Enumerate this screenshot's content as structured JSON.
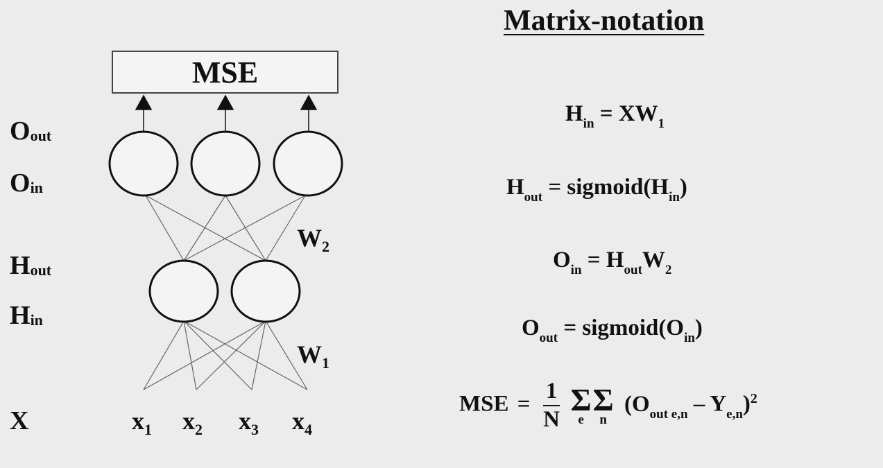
{
  "title": "Matrix-notation",
  "box": {
    "label": "MSE"
  },
  "layers": {
    "o_out": {
      "base": "O",
      "sub": "out"
    },
    "o_in": {
      "base": "O",
      "sub": "in"
    },
    "h_out": {
      "base": "H",
      "sub": "out"
    },
    "h_in": {
      "base": "H",
      "sub": "in"
    },
    "x": {
      "base": "X"
    }
  },
  "weights": {
    "w2": {
      "base": "W",
      "sub": "2"
    },
    "w1": {
      "base": "W",
      "sub": "1"
    }
  },
  "inputs": [
    {
      "base": "x",
      "sub": "1"
    },
    {
      "base": "x",
      "sub": "2"
    },
    {
      "base": "x",
      "sub": "3"
    },
    {
      "base": "x",
      "sub": "4"
    }
  ],
  "equations": {
    "eq1": {
      "lhs": "H",
      "lhs_sub": "in",
      "rhs": "= XW",
      "rhs_sub": "1"
    },
    "eq2": {
      "lhs": "H",
      "lhs_sub": "out",
      "rhs": "= sigmoid(H",
      "rhs_sub": "in",
      "tail": ")"
    },
    "eq3": {
      "lhs": "O",
      "lhs_sub": "in",
      "mid": "= H",
      "mid_sub": "out",
      "rhs": "W",
      "rhs_sub": "2"
    },
    "eq4": {
      "lhs": "O",
      "lhs_sub": "out",
      "rhs": "= sigmoid(O",
      "rhs_sub": "in",
      "tail": ")"
    },
    "mse": {
      "lhs": "MSE",
      "eq": "=",
      "num": "1",
      "den": "N",
      "sum1_idx": "e",
      "sum2_idx": "n",
      "open": "(O",
      "o_sub": "out e,n",
      "minus": "– Y",
      "y_sub": "e,n",
      "close": ")",
      "power": "2"
    }
  }
}
